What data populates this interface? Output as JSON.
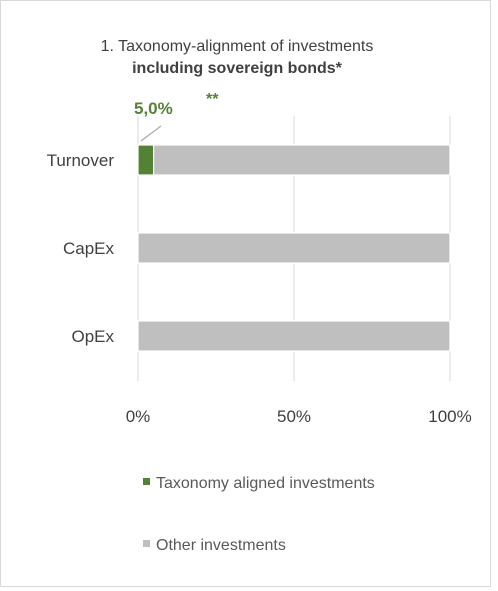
{
  "chart_data": {
    "type": "bar",
    "stacked": true,
    "orientation": "horizontal",
    "title_line1": "1. Taxonomy-alignment of investments",
    "title_line2": "including sovereign bonds*",
    "categories": [
      "Turnover",
      "CapEx",
      "OpEx"
    ],
    "series": [
      {
        "name": "Taxonomy aligned investments",
        "values": [
          5.0,
          0,
          0
        ],
        "color": "#548235"
      },
      {
        "name": "Other investments",
        "values": [
          95.0,
          100,
          100
        ],
        "color": "#bfbfbf"
      }
    ],
    "xlim": [
      0,
      100
    ],
    "x_ticks": [
      "0%",
      "50%",
      "100%"
    ],
    "grid": true,
    "legend_position": "bottom",
    "annotation": {
      "label": "5,0%",
      "note": "**",
      "color": "#548235"
    }
  }
}
